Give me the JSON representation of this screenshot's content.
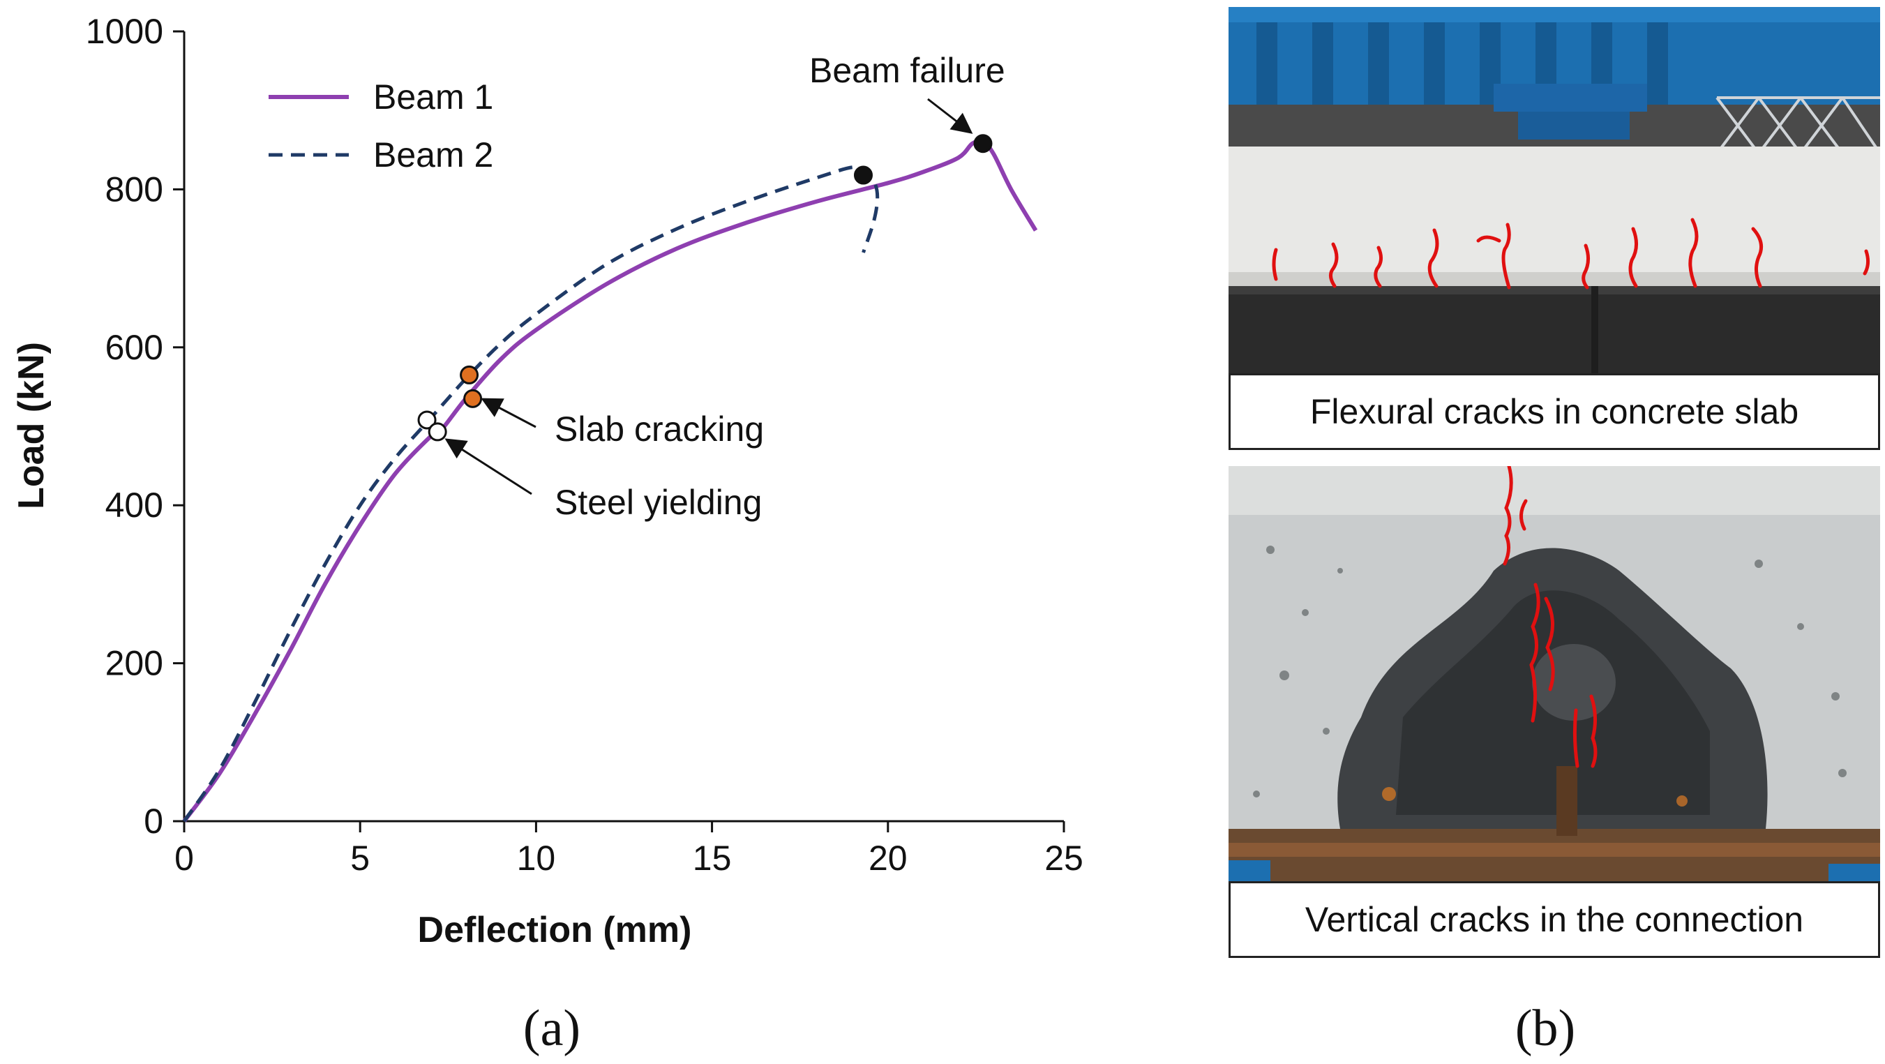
{
  "chart_data": {
    "type": "line",
    "xlabel": "Deflection (mm)",
    "ylabel": "Load (kN)",
    "xlim": [
      0,
      25
    ],
    "ylim": [
      0,
      1000
    ],
    "xticks": [
      "0",
      "5",
      "10",
      "15",
      "20",
      "25"
    ],
    "yticks": [
      "0",
      "200",
      "400",
      "600",
      "800",
      "1000"
    ],
    "legend_position": "top-left",
    "series": [
      {
        "name": "Beam 1",
        "color": "#8e3fb0",
        "style": "solid",
        "points": [
          [
            0,
            0
          ],
          [
            1,
            60
          ],
          [
            2,
            135
          ],
          [
            3,
            215
          ],
          [
            4,
            300
          ],
          [
            5,
            375
          ],
          [
            6,
            440
          ],
          [
            7,
            487
          ],
          [
            7.3,
            495
          ],
          [
            8,
            535
          ],
          [
            9,
            585
          ],
          [
            10,
            622
          ],
          [
            12,
            680
          ],
          [
            14,
            725
          ],
          [
            16,
            758
          ],
          [
            18,
            785
          ],
          [
            20,
            808
          ],
          [
            21,
            822
          ],
          [
            22,
            840
          ],
          [
            22.4,
            858
          ],
          [
            22.7,
            860
          ],
          [
            23,
            845
          ],
          [
            23.5,
            800
          ],
          [
            24.2,
            748
          ]
        ]
      },
      {
        "name": "Beam 2",
        "color": "#1f3a66",
        "style": "dashed",
        "points": [
          [
            0,
            0
          ],
          [
            1,
            65
          ],
          [
            2,
            150
          ],
          [
            3,
            240
          ],
          [
            4,
            325
          ],
          [
            5,
            400
          ],
          [
            6,
            460
          ],
          [
            7,
            510
          ],
          [
            8,
            560
          ],
          [
            9,
            605
          ],
          [
            10,
            642
          ],
          [
            12,
            705
          ],
          [
            14,
            750
          ],
          [
            16,
            785
          ],
          [
            18,
            815
          ],
          [
            19,
            828
          ],
          [
            19.3,
            822
          ],
          [
            19.6,
            810
          ],
          [
            19.7,
            790
          ],
          [
            19.6,
            760
          ],
          [
            19.3,
            720
          ]
        ]
      }
    ],
    "markers": [
      {
        "label": "Slab cracking",
        "points": [
          [
            8.1,
            565
          ],
          [
            8.2,
            535
          ]
        ],
        "fill": "#e07020"
      },
      {
        "label": "Steel yielding",
        "points": [
          [
            6.9,
            508
          ],
          [
            7.2,
            493
          ]
        ],
        "fill": "#ffffff"
      },
      {
        "label": "Beam failure",
        "points": [
          [
            19.3,
            818
          ],
          [
            22.7,
            858
          ]
        ],
        "fill": "#111111"
      }
    ]
  },
  "annotations": {
    "beam_failure": "Beam failure",
    "slab_cracking": "Slab cracking",
    "steel_yielding": "Steel yielding"
  },
  "panel_labels": {
    "a": "(a)",
    "b": "(b)"
  },
  "photos": {
    "top_caption": "Flexural cracks in concrete slab",
    "bottom_caption": "Vertical cracks in the connection"
  }
}
